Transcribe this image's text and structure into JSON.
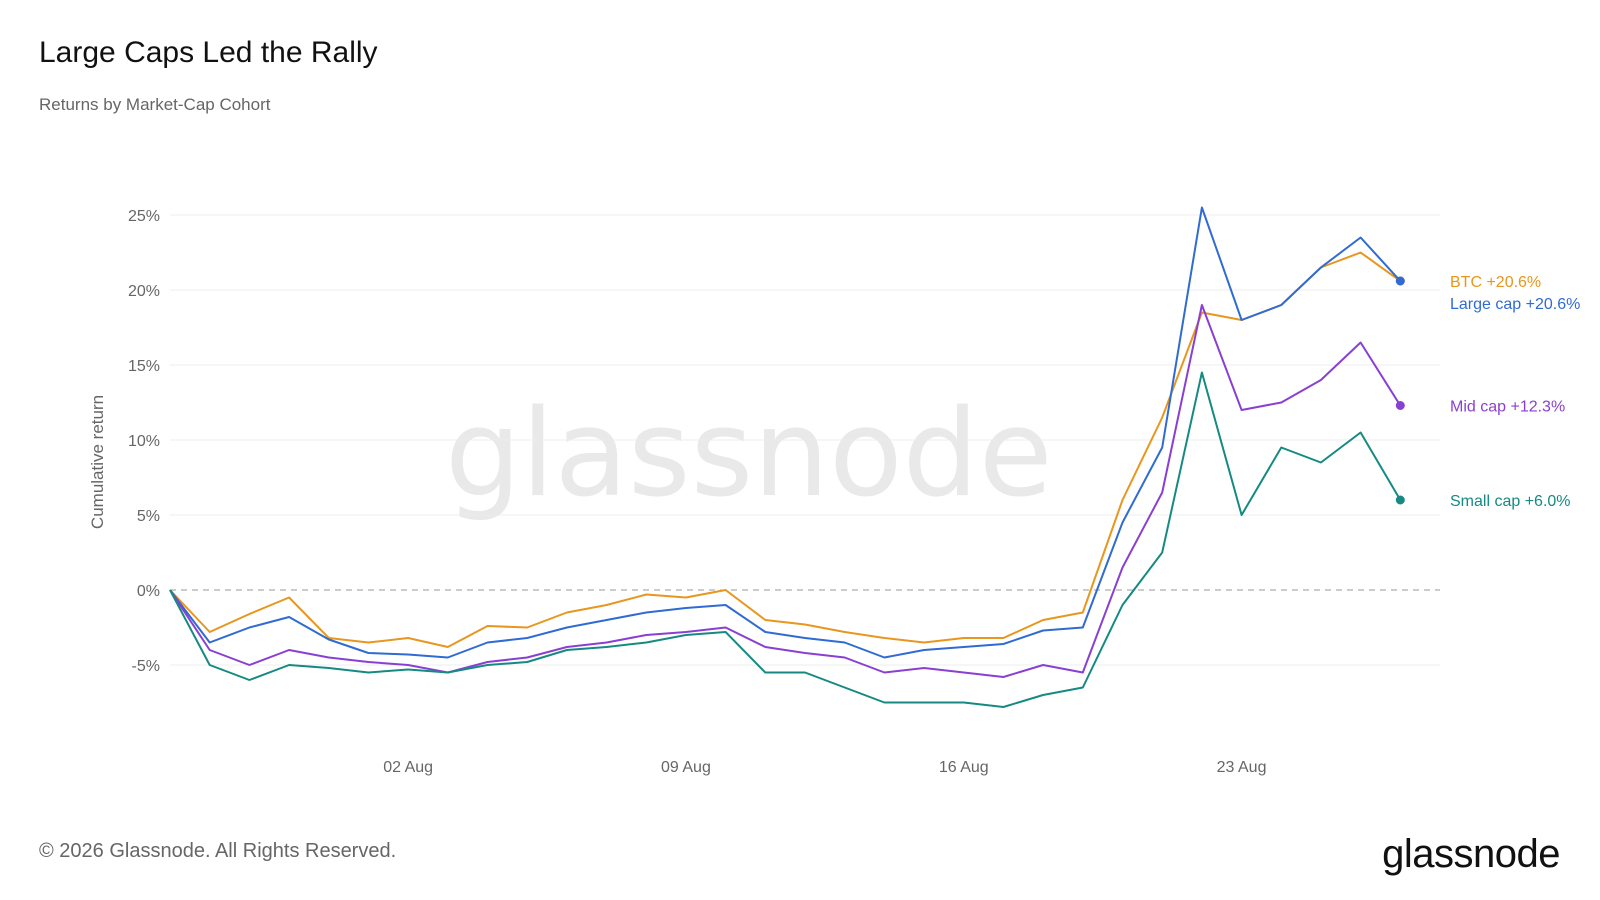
{
  "title": "Large Caps Led the Rally",
  "subtitle": "Returns by Market-Cap Cohort",
  "footer": "© 2026 Glassnode. All Rights Reserved.",
  "logo_text": "glassnode",
  "watermark": "glassnode",
  "chart_data": {
    "type": "line",
    "ylabel": "Cumulative return",
    "y_ticks": [
      "-5%",
      "0%",
      "5%",
      "10%",
      "15%",
      "20%",
      "25%"
    ],
    "y_tick_values": [
      -5,
      0,
      5,
      10,
      15,
      20,
      25
    ],
    "x_ticks": [
      "02 Aug",
      "09 Aug",
      "16 Aug",
      "23 Aug"
    ],
    "x_tick_values": [
      "2025-08-02",
      "2025-08-09",
      "2025-08-16",
      "2025-08-23"
    ],
    "xlim": [
      "2025-07-27",
      "2025-08-28"
    ],
    "ylim": [
      -10,
      26
    ],
    "zero_line": "dashed",
    "grid": true,
    "series": [
      {
        "name": "BTC",
        "label": "BTC +20.6%",
        "color": "#E8961E",
        "x": [
          "2025-07-27",
          "2025-07-28",
          "2025-07-29",
          "2025-07-30",
          "2025-07-31",
          "2025-08-01",
          "2025-08-02",
          "2025-08-03",
          "2025-08-04",
          "2025-08-05",
          "2025-08-06",
          "2025-08-07",
          "2025-08-08",
          "2025-08-09",
          "2025-08-10",
          "2025-08-11",
          "2025-08-12",
          "2025-08-13",
          "2025-08-14",
          "2025-08-15",
          "2025-08-16",
          "2025-08-17",
          "2025-08-18",
          "2025-08-19",
          "2025-08-20",
          "2025-08-21",
          "2025-08-22",
          "2025-08-23",
          "2025-08-24",
          "2025-08-25",
          "2025-08-26",
          "2025-08-27"
        ],
        "y": [
          0.0,
          -2.8,
          -1.6,
          -0.5,
          -3.2,
          -3.5,
          -3.2,
          -3.8,
          -2.4,
          -2.5,
          -1.5,
          -1.0,
          -0.3,
          -0.5,
          0.0,
          -2.0,
          -2.3,
          -2.8,
          -3.2,
          -3.5,
          -3.2,
          -3.2,
          -2.0,
          -1.5,
          6.0,
          11.5,
          18.5,
          18.0,
          19.0,
          21.5,
          22.5,
          20.6
        ]
      },
      {
        "name": "Large cap",
        "label": "Large cap +20.6%",
        "color": "#2F6BD3",
        "x": [
          "2025-07-27",
          "2025-07-28",
          "2025-07-29",
          "2025-07-30",
          "2025-07-31",
          "2025-08-01",
          "2025-08-02",
          "2025-08-03",
          "2025-08-04",
          "2025-08-05",
          "2025-08-06",
          "2025-08-07",
          "2025-08-08",
          "2025-08-09",
          "2025-08-10",
          "2025-08-11",
          "2025-08-12",
          "2025-08-13",
          "2025-08-14",
          "2025-08-15",
          "2025-08-16",
          "2025-08-17",
          "2025-08-18",
          "2025-08-19",
          "2025-08-20",
          "2025-08-21",
          "2025-08-22",
          "2025-08-23",
          "2025-08-24",
          "2025-08-25",
          "2025-08-26",
          "2025-08-27"
        ],
        "y": [
          0.0,
          -3.5,
          -2.5,
          -1.8,
          -3.3,
          -4.2,
          -4.3,
          -4.5,
          -3.5,
          -3.2,
          -2.5,
          -2.0,
          -1.5,
          -1.2,
          -1.0,
          -2.8,
          -3.2,
          -3.5,
          -4.5,
          -4.0,
          -3.8,
          -3.6,
          -2.7,
          -2.5,
          4.5,
          9.5,
          25.5,
          18.0,
          19.0,
          21.5,
          23.5,
          20.6
        ]
      },
      {
        "name": "Mid cap",
        "label": "Mid cap +12.3%",
        "color": "#8A3FD3",
        "x": [
          "2025-07-27",
          "2025-07-28",
          "2025-07-29",
          "2025-07-30",
          "2025-07-31",
          "2025-08-01",
          "2025-08-02",
          "2025-08-03",
          "2025-08-04",
          "2025-08-05",
          "2025-08-06",
          "2025-08-07",
          "2025-08-08",
          "2025-08-09",
          "2025-08-10",
          "2025-08-11",
          "2025-08-12",
          "2025-08-13",
          "2025-08-14",
          "2025-08-15",
          "2025-08-16",
          "2025-08-17",
          "2025-08-18",
          "2025-08-19",
          "2025-08-20",
          "2025-08-21",
          "2025-08-22",
          "2025-08-23",
          "2025-08-24",
          "2025-08-25",
          "2025-08-26",
          "2025-08-27"
        ],
        "y": [
          0.0,
          -4.0,
          -5.0,
          -4.0,
          -4.5,
          -4.8,
          -5.0,
          -5.5,
          -4.8,
          -4.5,
          -3.8,
          -3.5,
          -3.0,
          -2.8,
          -2.5,
          -3.8,
          -4.2,
          -4.5,
          -5.5,
          -5.2,
          -5.5,
          -5.8,
          -5.0,
          -5.5,
          1.5,
          6.5,
          19.0,
          12.0,
          12.5,
          14.0,
          16.5,
          12.3
        ]
      },
      {
        "name": "Small cap",
        "label": "Small cap +6.0%",
        "color": "#168A82",
        "x": [
          "2025-07-27",
          "2025-07-28",
          "2025-07-29",
          "2025-07-30",
          "2025-07-31",
          "2025-08-01",
          "2025-08-02",
          "2025-08-03",
          "2025-08-04",
          "2025-08-05",
          "2025-08-06",
          "2025-08-07",
          "2025-08-08",
          "2025-08-09",
          "2025-08-10",
          "2025-08-11",
          "2025-08-12",
          "2025-08-13",
          "2025-08-14",
          "2025-08-15",
          "2025-08-16",
          "2025-08-17",
          "2025-08-18",
          "2025-08-19",
          "2025-08-20",
          "2025-08-21",
          "2025-08-22",
          "2025-08-23",
          "2025-08-24",
          "2025-08-25",
          "2025-08-26",
          "2025-08-27"
        ],
        "y": [
          0.0,
          -5.0,
          -6.0,
          -5.0,
          -5.2,
          -5.5,
          -5.3,
          -5.5,
          -5.0,
          -4.8,
          -4.0,
          -3.8,
          -3.5,
          -3.0,
          -2.8,
          -5.5,
          -5.5,
          -6.5,
          -7.5,
          -7.5,
          -7.5,
          -7.8,
          -7.0,
          -6.5,
          -1.0,
          2.5,
          14.5,
          5.0,
          9.5,
          8.5,
          10.5,
          6.0
        ]
      }
    ]
  }
}
